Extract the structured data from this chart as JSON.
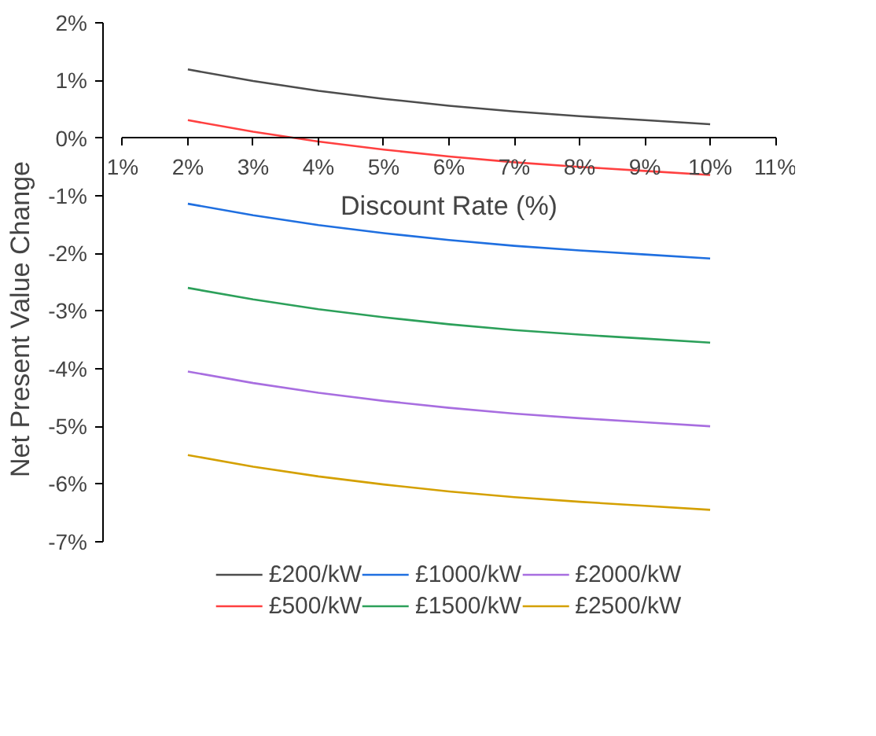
{
  "chart_data": {
    "type": "line",
    "xlabel": "Discount Rate (%)",
    "ylabel": "Net Present Value Change",
    "x": [
      2,
      3,
      4,
      5,
      6,
      7,
      8,
      9,
      10
    ],
    "series": [
      {
        "name": "£200/kW",
        "color": "#4d4d4d",
        "values": [
          1.19,
          0.99,
          0.82,
          0.68,
          0.56,
          0.46,
          0.38,
          0.31,
          0.24
        ]
      },
      {
        "name": "£500/kW",
        "color": "#ff4040",
        "values": [
          0.31,
          0.11,
          -0.06,
          -0.2,
          -0.32,
          -0.42,
          -0.5,
          -0.57,
          -0.64
        ]
      },
      {
        "name": "£1000/kW",
        "color": "#1f6fe0",
        "values": [
          -1.14,
          -1.34,
          -1.51,
          -1.65,
          -1.77,
          -1.87,
          -1.95,
          -2.02,
          -2.09
        ]
      },
      {
        "name": "£1500/kW",
        "color": "#2ca05a",
        "values": [
          -2.6,
          -2.8,
          -2.97,
          -3.11,
          -3.23,
          -3.33,
          -3.41,
          -3.48,
          -3.55
        ]
      },
      {
        "name": "£2000/kW",
        "color": "#a86ee0",
        "values": [
          -4.05,
          -4.25,
          -4.42,
          -4.56,
          -4.68,
          -4.78,
          -4.86,
          -4.93,
          -5.0
        ]
      },
      {
        "name": "£2500/kW",
        "color": "#d4a000",
        "values": [
          -5.5,
          -5.7,
          -5.87,
          -6.01,
          -6.13,
          -6.23,
          -6.31,
          -6.38,
          -6.45
        ]
      }
    ],
    "xlim": [
      1,
      11
    ],
    "xticks": [
      {
        "value": 1,
        "label": "1%"
      },
      {
        "value": 2,
        "label": "2%"
      },
      {
        "value": 3,
        "label": "3%"
      },
      {
        "value": 4,
        "label": "4%"
      },
      {
        "value": 5,
        "label": "5%"
      },
      {
        "value": 6,
        "label": "6%"
      },
      {
        "value": 7,
        "label": "7%"
      },
      {
        "value": 8,
        "label": "8%"
      },
      {
        "value": 9,
        "label": "9%"
      },
      {
        "value": 10,
        "label": "10%"
      },
      {
        "value": 11,
        "label": "11%"
      }
    ],
    "ylim": [
      -7,
      2
    ],
    "yticks": [
      {
        "value": -7,
        "label": "-7%"
      },
      {
        "value": -6,
        "label": "-6%"
      },
      {
        "value": -5,
        "label": "-5%"
      },
      {
        "value": -4,
        "label": "-4%"
      },
      {
        "value": -3,
        "label": "-3%"
      },
      {
        "value": -2,
        "label": "-2%"
      },
      {
        "value": -1,
        "label": "-1%"
      },
      {
        "value": 0,
        "label": "0%"
      },
      {
        "value": 1,
        "label": "1%"
      },
      {
        "value": 2,
        "label": "2%"
      }
    ],
    "grid": false,
    "legend": "bottom",
    "marker": "none",
    "line_style": "solid"
  }
}
